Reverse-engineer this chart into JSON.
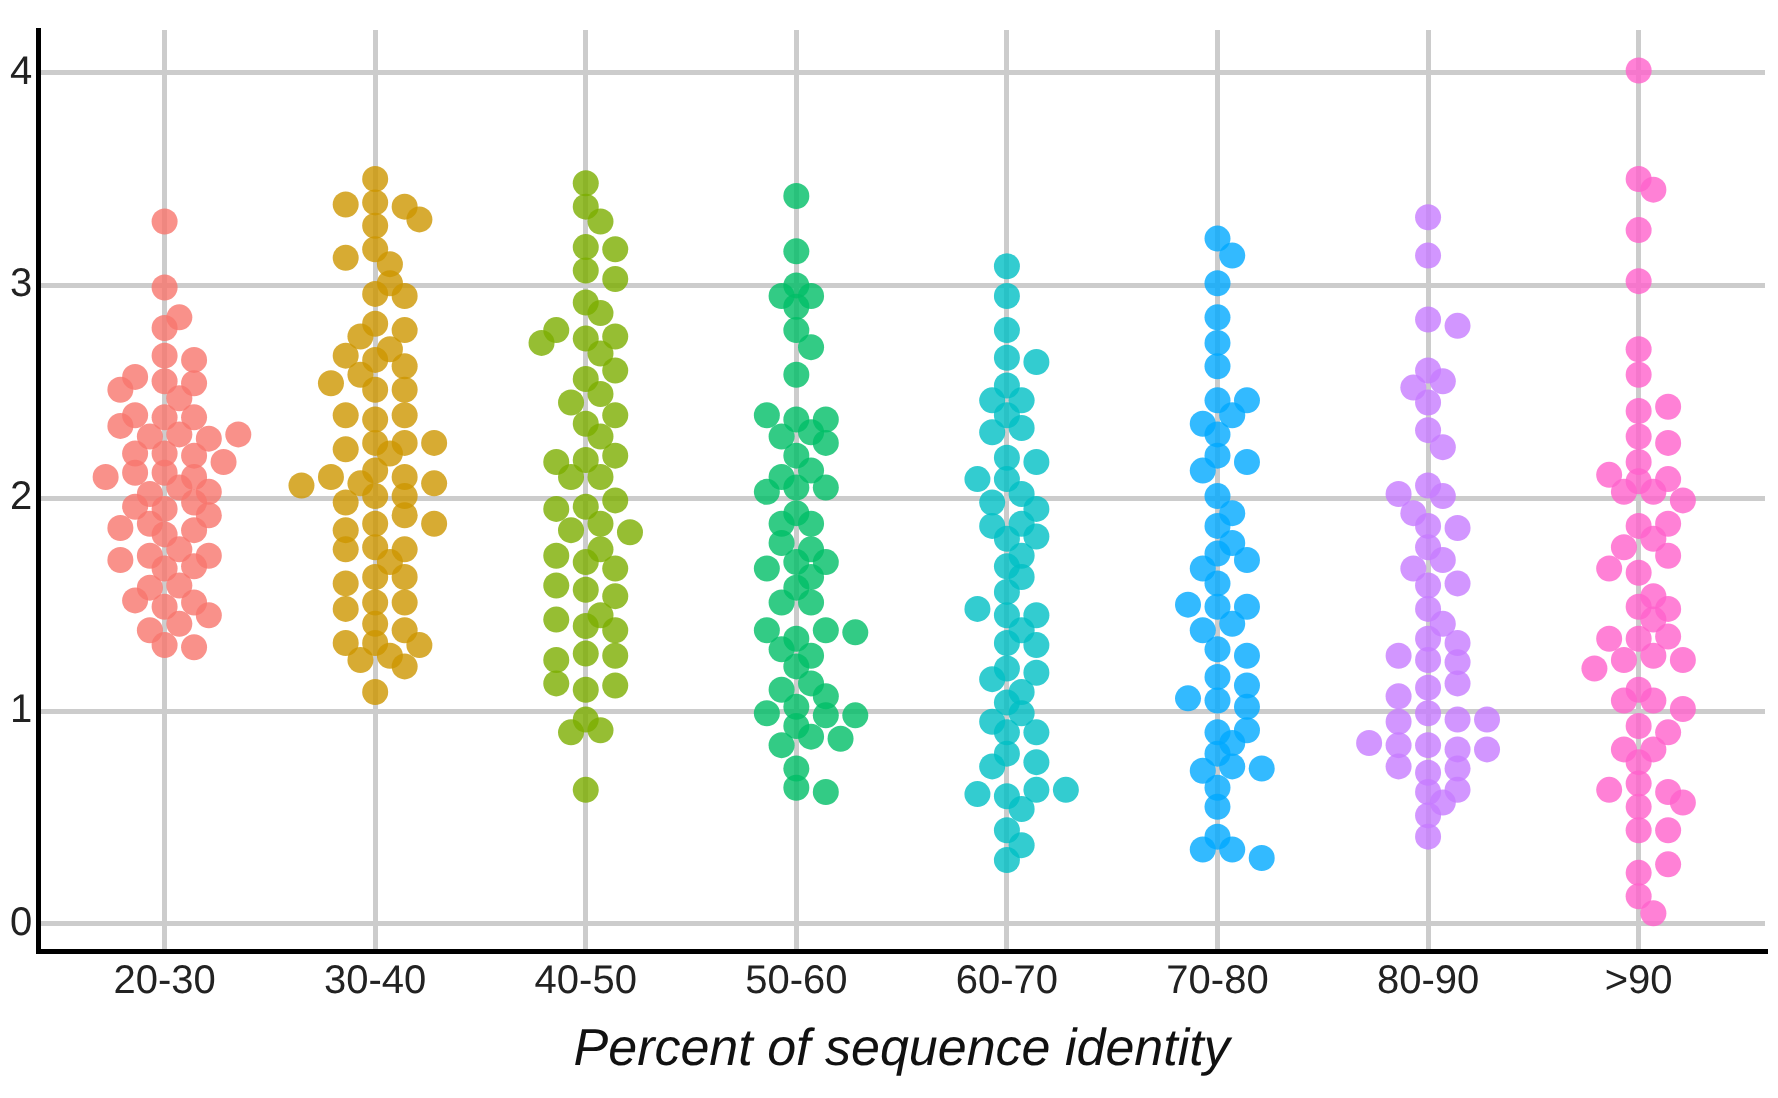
{
  "chart_data": {
    "type": "scatter",
    "xlabel": "Percent of sequence identity",
    "marker": "circle",
    "grid": true,
    "legend": false,
    "ylim": [
      -0.13,
      4.2
    ],
    "categories": [
      "20-30",
      "30-40",
      "40-50",
      "50-60",
      "60-70",
      "70-80",
      "80-90",
      ">90"
    ],
    "yticks": [
      0,
      1,
      2,
      3,
      4
    ],
    "series": [
      {
        "color": "#f8766d",
        "x": [
          "20-30",
          "20-30",
          "20-30",
          "20-30",
          "20-30",
          "20-30",
          "20-30",
          "20-30",
          "20-30",
          "20-30",
          "20-30",
          "20-30",
          "20-30",
          "20-30",
          "20-30",
          "20-30",
          "20-30",
          "20-30",
          "20-30",
          "20-30",
          "20-30",
          "20-30",
          "20-30",
          "20-30",
          "20-30",
          "20-30",
          "20-30",
          "20-30",
          "20-30",
          "20-30",
          "20-30",
          "20-30",
          "20-30",
          "20-30",
          "20-30",
          "20-30",
          "20-30",
          "20-30",
          "20-30",
          "20-30",
          "20-30",
          "20-30",
          "20-30",
          "20-30",
          "20-30",
          "20-30",
          "20-30",
          "20-30",
          "20-30",
          "20-30",
          "20-30",
          "20-30",
          "20-30",
          "20-30"
        ],
        "values": [
          3.3,
          2.99,
          2.8,
          2.85,
          2.67,
          2.65,
          2.55,
          2.54,
          2.57,
          2.51,
          2.47,
          2.38,
          2.38,
          2.39,
          2.34,
          2.3,
          2.29,
          2.28,
          2.3,
          2.21,
          2.2,
          2.21,
          2.17,
          2.12,
          2.1,
          2.12,
          2.1,
          2.05,
          2.02,
          2.03,
          1.98,
          1.95,
          1.96,
          1.92,
          1.83,
          1.85,
          1.88,
          1.86,
          1.76,
          1.73,
          1.73,
          1.71,
          1.67,
          1.68,
          1.59,
          1.58,
          1.49,
          1.51,
          1.52,
          1.45,
          1.41,
          1.38,
          1.31,
          1.3
        ]
      },
      {
        "color": "#cd9600",
        "x": [
          "30-40",
          "30-40",
          "30-40",
          "30-40",
          "30-40",
          "30-40",
          "30-40",
          "30-40",
          "30-40",
          "30-40",
          "30-40",
          "30-40",
          "30-40",
          "30-40",
          "30-40",
          "30-40",
          "30-40",
          "30-40",
          "30-40",
          "30-40",
          "30-40",
          "30-40",
          "30-40",
          "30-40",
          "30-40",
          "30-40",
          "30-40",
          "30-40",
          "30-40",
          "30-40",
          "30-40",
          "30-40",
          "30-40",
          "30-40",
          "30-40",
          "30-40",
          "30-40",
          "30-40",
          "30-40",
          "30-40",
          "30-40",
          "30-40",
          "30-40",
          "30-40",
          "30-40",
          "30-40",
          "30-40",
          "30-40",
          "30-40",
          "30-40",
          "30-40",
          "30-40",
          "30-40",
          "30-40",
          "30-40",
          "30-40",
          "30-40",
          "30-40",
          "30-40",
          "30-40",
          "30-40",
          "30-40",
          "30-40"
        ],
        "values": [
          3.5,
          3.39,
          3.37,
          3.38,
          3.28,
          3.31,
          3.17,
          3.1,
          3.13,
          2.96,
          3.01,
          2.95,
          2.82,
          2.79,
          2.76,
          2.65,
          2.62,
          2.67,
          2.7,
          2.58,
          2.51,
          2.51,
          2.54,
          2.37,
          2.39,
          2.39,
          2.26,
          2.26,
          2.23,
          2.26,
          2.21,
          2.13,
          2.1,
          2.07,
          2.1,
          2.07,
          2.06,
          2.01,
          2.01,
          1.98,
          1.88,
          1.92,
          1.85,
          1.88,
          1.77,
          1.76,
          1.76,
          1.7,
          1.63,
          1.63,
          1.6,
          1.51,
          1.51,
          1.48,
          1.41,
          1.38,
          1.32,
          1.32,
          1.31,
          1.26,
          1.24,
          1.21,
          1.09
        ]
      },
      {
        "color": "#7cae00",
        "x": [
          "40-50",
          "40-50",
          "40-50",
          "40-50",
          "40-50",
          "40-50",
          "40-50",
          "40-50",
          "40-50",
          "40-50",
          "40-50",
          "40-50",
          "40-50",
          "40-50",
          "40-50",
          "40-50",
          "40-50",
          "40-50",
          "40-50",
          "40-50",
          "40-50",
          "40-50",
          "40-50",
          "40-50",
          "40-50",
          "40-50",
          "40-50",
          "40-50",
          "40-50",
          "40-50",
          "40-50",
          "40-50",
          "40-50",
          "40-50",
          "40-50",
          "40-50",
          "40-50",
          "40-50",
          "40-50",
          "40-50",
          "40-50",
          "40-50",
          "40-50",
          "40-50",
          "40-50",
          "40-50",
          "40-50",
          "40-50",
          "40-50",
          "40-50",
          "40-50",
          "40-50",
          "40-50"
        ],
        "values": [
          3.48,
          3.37,
          3.3,
          3.18,
          3.17,
          3.07,
          3.03,
          2.92,
          2.87,
          2.75,
          2.76,
          2.79,
          2.73,
          2.68,
          2.56,
          2.6,
          2.49,
          2.45,
          2.35,
          2.39,
          2.29,
          2.18,
          2.2,
          2.17,
          2.1,
          2.1,
          1.96,
          1.99,
          1.95,
          1.88,
          1.85,
          1.84,
          1.7,
          1.76,
          1.73,
          1.67,
          1.57,
          1.59,
          1.54,
          1.4,
          1.45,
          1.38,
          1.43,
          1.27,
          1.26,
          1.24,
          1.1,
          1.12,
          1.13,
          0.96,
          0.91,
          0.9,
          0.63
        ]
      },
      {
        "color": "#00be67",
        "x": [
          "50-60",
          "50-60",
          "50-60",
          "50-60",
          "50-60",
          "50-60",
          "50-60",
          "50-60",
          "50-60",
          "50-60",
          "50-60",
          "50-60",
          "50-60",
          "50-60",
          "50-60",
          "50-60",
          "50-60",
          "50-60",
          "50-60",
          "50-60",
          "50-60",
          "50-60",
          "50-60",
          "50-60",
          "50-60",
          "50-60",
          "50-60",
          "50-60",
          "50-60",
          "50-60",
          "50-60",
          "50-60",
          "50-60",
          "50-60",
          "50-60",
          "50-60",
          "50-60",
          "50-60",
          "50-60",
          "50-60",
          "50-60",
          "50-60",
          "50-60",
          "50-60",
          "50-60",
          "50-60",
          "50-60",
          "50-60",
          "50-60",
          "50-60",
          "50-60",
          "50-60",
          "50-60",
          "50-60"
        ],
        "values": [
          3.42,
          3.16,
          3.0,
          2.95,
          2.95,
          2.9,
          2.79,
          2.71,
          2.58,
          2.37,
          2.37,
          2.39,
          2.31,
          2.29,
          2.26,
          2.2,
          2.13,
          2.1,
          2.05,
          2.05,
          2.03,
          1.93,
          1.88,
          1.88,
          1.7,
          1.76,
          1.79,
          1.7,
          1.67,
          1.63,
          1.58,
          1.51,
          1.51,
          1.34,
          1.38,
          1.38,
          1.37,
          1.26,
          1.29,
          1.21,
          1.13,
          1.1,
          1.07,
          1.02,
          0.98,
          0.99,
          0.98,
          0.93,
          0.88,
          0.84,
          0.87,
          0.73,
          0.64,
          0.62
        ]
      },
      {
        "color": "#00bfc4",
        "x": [
          "60-70",
          "60-70",
          "60-70",
          "60-70",
          "60-70",
          "60-70",
          "60-70",
          "60-70",
          "60-70",
          "60-70",
          "60-70",
          "60-70",
          "60-70",
          "60-70",
          "60-70",
          "60-70",
          "60-70",
          "60-70",
          "60-70",
          "60-70",
          "60-70",
          "60-70",
          "60-70",
          "60-70",
          "60-70",
          "60-70",
          "60-70",
          "60-70",
          "60-70",
          "60-70",
          "60-70",
          "60-70",
          "60-70",
          "60-70",
          "60-70",
          "60-70",
          "60-70",
          "60-70",
          "60-70",
          "60-70",
          "60-70",
          "60-70",
          "60-70",
          "60-70",
          "60-70",
          "60-70",
          "60-70",
          "60-70",
          "60-70",
          "60-70",
          "60-70",
          "60-70"
        ],
        "values": [
          3.09,
          2.95,
          2.79,
          2.66,
          2.64,
          2.53,
          2.46,
          2.46,
          2.39,
          2.33,
          2.31,
          2.19,
          2.17,
          2.09,
          2.09,
          2.02,
          1.98,
          1.95,
          1.81,
          1.88,
          1.87,
          1.82,
          1.68,
          1.73,
          1.63,
          1.56,
          1.45,
          1.45,
          1.48,
          1.32,
          1.38,
          1.31,
          1.2,
          1.18,
          1.15,
          1.04,
          1.09,
          0.99,
          0.9,
          0.95,
          0.9,
          0.8,
          0.76,
          0.74,
          0.6,
          0.63,
          0.61,
          0.63,
          0.54,
          0.44,
          0.37,
          0.3
        ]
      },
      {
        "color": "#00a9ff",
        "x": [
          "70-80",
          "70-80",
          "70-80",
          "70-80",
          "70-80",
          "70-80",
          "70-80",
          "70-80",
          "70-80",
          "70-80",
          "70-80",
          "70-80",
          "70-80",
          "70-80",
          "70-80",
          "70-80",
          "70-80",
          "70-80",
          "70-80",
          "70-80",
          "70-80",
          "70-80",
          "70-80",
          "70-80",
          "70-80",
          "70-80",
          "70-80",
          "70-80",
          "70-80",
          "70-80",
          "70-80",
          "70-80",
          "70-80",
          "70-80",
          "70-80",
          "70-80",
          "70-80",
          "70-80",
          "70-80",
          "70-80",
          "70-80",
          "70-80",
          "70-80",
          "70-80",
          "70-80",
          "70-80",
          "70-80"
        ],
        "values": [
          3.22,
          3.14,
          3.01,
          2.85,
          2.73,
          2.62,
          2.46,
          2.46,
          2.39,
          2.35,
          2.3,
          2.2,
          2.17,
          2.13,
          2.01,
          1.93,
          1.87,
          1.79,
          1.74,
          1.71,
          1.67,
          1.6,
          1.49,
          1.49,
          1.5,
          1.41,
          1.38,
          1.29,
          1.26,
          1.16,
          1.12,
          1.05,
          1.02,
          1.06,
          0.9,
          0.91,
          0.85,
          0.8,
          0.74,
          0.72,
          0.73,
          0.64,
          0.55,
          0.41,
          0.35,
          0.35,
          0.31
        ]
      },
      {
        "color": "#c77cff",
        "x": [
          "80-90",
          "80-90",
          "80-90",
          "80-90",
          "80-90",
          "80-90",
          "80-90",
          "80-90",
          "80-90",
          "80-90",
          "80-90",
          "80-90",
          "80-90",
          "80-90",
          "80-90",
          "80-90",
          "80-90",
          "80-90",
          "80-90",
          "80-90",
          "80-90",
          "80-90",
          "80-90",
          "80-90",
          "80-90",
          "80-90",
          "80-90",
          "80-90",
          "80-90",
          "80-90",
          "80-90",
          "80-90",
          "80-90",
          "80-90",
          "80-90",
          "80-90",
          "80-90",
          "80-90",
          "80-90",
          "80-90",
          "80-90",
          "80-90",
          "80-90",
          "80-90",
          "80-90",
          "80-90",
          "80-90",
          "80-90"
        ],
        "values": [
          3.32,
          3.14,
          2.84,
          2.81,
          2.6,
          2.55,
          2.52,
          2.45,
          2.32,
          2.24,
          2.06,
          2.01,
          2.02,
          1.87,
          1.93,
          1.86,
          1.77,
          1.71,
          1.67,
          1.59,
          1.6,
          1.48,
          1.41,
          1.34,
          1.32,
          1.24,
          1.26,
          1.23,
          1.11,
          1.13,
          1.07,
          0.99,
          0.96,
          0.95,
          0.96,
          0.84,
          0.82,
          0.84,
          0.82,
          0.85,
          0.71,
          0.74,
          0.73,
          0.62,
          0.57,
          0.63,
          0.51,
          0.41
        ]
      },
      {
        "color": "#ff61cc",
        "x": [
          ">90",
          ">90",
          ">90",
          ">90",
          ">90",
          ">90",
          ">90",
          ">90",
          ">90",
          ">90",
          ">90",
          ">90",
          ">90",
          ">90",
          ">90",
          ">90",
          ">90",
          ">90",
          ">90",
          ">90",
          ">90",
          ">90",
          ">90",
          ">90",
          ">90",
          ">90",
          ">90",
          ">90",
          ">90",
          ">90",
          ">90",
          ">90",
          ">90",
          ">90",
          ">90",
          ">90",
          ">90",
          ">90",
          ">90",
          ">90",
          ">90",
          ">90",
          ">90",
          ">90",
          ">90",
          ">90",
          ">90",
          ">90",
          ">90",
          ">90",
          ">90",
          ">90",
          ">90",
          ">90",
          ">90",
          ">90"
        ],
        "values": [
          4.01,
          3.5,
          3.45,
          3.26,
          3.02,
          2.7,
          2.58,
          2.41,
          2.43,
          2.29,
          2.26,
          2.17,
          2.08,
          2.09,
          2.11,
          2.03,
          2.03,
          1.99,
          1.87,
          1.88,
          1.81,
          1.77,
          1.73,
          1.65,
          1.67,
          1.49,
          1.54,
          1.48,
          1.43,
          1.34,
          1.35,
          1.34,
          1.26,
          1.24,
          1.24,
          1.2,
          1.1,
          1.05,
          1.05,
          1.01,
          0.93,
          0.9,
          0.76,
          0.82,
          0.82,
          0.66,
          0.62,
          0.63,
          0.55,
          0.57,
          0.44,
          0.44,
          0.24,
          0.28,
          0.13,
          0.05
        ]
      }
    ]
  }
}
